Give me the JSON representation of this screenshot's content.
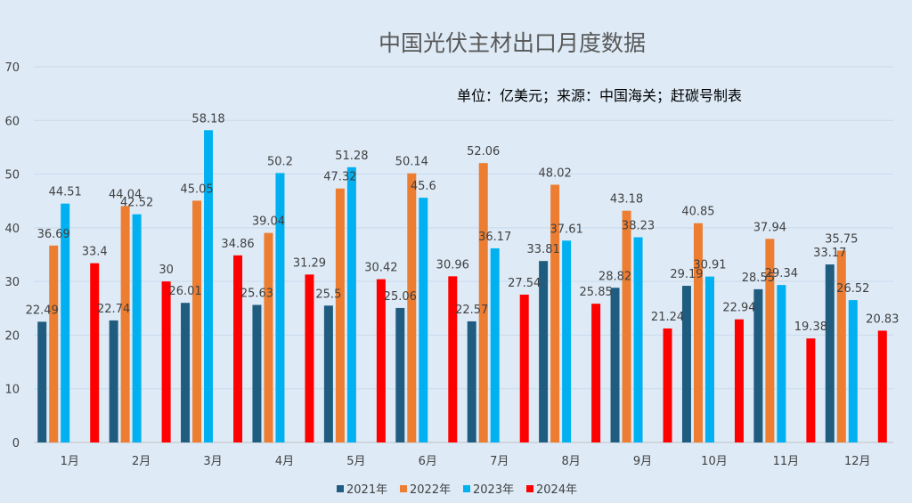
{
  "chart_data": {
    "type": "bar",
    "title": "中国光伏主材出口月度数据",
    "subtitle": "单位：亿美元；来源：中国海关；赶碳号制表",
    "xlabel": "",
    "ylabel": "",
    "ylim": [
      0,
      70
    ],
    "yticks": [
      0,
      10,
      20,
      30,
      40,
      50,
      60,
      70
    ],
    "grid": true,
    "legend_position": "bottom",
    "categories": [
      "1月",
      "2月",
      "3月",
      "4月",
      "5月",
      "6月",
      "7月",
      "8月",
      "9月",
      "10月",
      "11月",
      "12月"
    ],
    "series": [
      {
        "name": "2021年",
        "color": "#1f5c80",
        "values": [
          22.49,
          22.74,
          26.01,
          25.63,
          25.5,
          25.06,
          22.57,
          33.81,
          28.82,
          29.19,
          28.55,
          33.17
        ]
      },
      {
        "name": "2022年",
        "color": "#ed7d31",
        "values": [
          36.69,
          44.04,
          45.05,
          39.04,
          47.32,
          50.14,
          52.06,
          48.02,
          43.18,
          40.85,
          37.94,
          35.75
        ]
      },
      {
        "name": "2023年",
        "color": "#00b0f0",
        "values": [
          44.51,
          42.52,
          58.18,
          50.2,
          51.28,
          45.6,
          36.17,
          37.61,
          38.23,
          30.91,
          29.34,
          26.52
        ]
      },
      {
        "name": "2024年",
        "color": "#ff0000",
        "values": [
          33.4,
          30,
          34.86,
          31.29,
          30.42,
          30.96,
          27.54,
          25.85,
          21.24,
          22.94,
          19.38,
          20.83
        ]
      }
    ]
  }
}
